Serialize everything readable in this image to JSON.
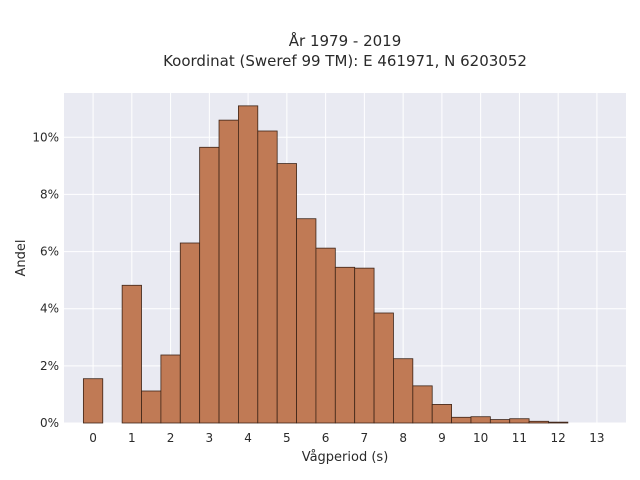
{
  "chart_data": {
    "type": "bar",
    "title": [
      "År 1979 - 2019",
      "Koordinat (Sweref 99 TM): E 461971, N 6203052"
    ],
    "xlabel": "Vågperiod (s)",
    "ylabel": "Andel",
    "bin_width": 0.5,
    "x": [
      0,
      0.5,
      1,
      1.5,
      2,
      2.5,
      3,
      3.5,
      4,
      4.5,
      5,
      5.5,
      6,
      6.5,
      7,
      7.5,
      8,
      8.5,
      9,
      9.5,
      10,
      10.5,
      11,
      11.5,
      12,
      12.5,
      13
    ],
    "values": [
      1.55,
      0,
      4.82,
      1.12,
      2.38,
      6.3,
      9.65,
      10.6,
      11.1,
      10.22,
      9.08,
      7.15,
      6.12,
      5.45,
      5.42,
      3.85,
      2.25,
      1.3,
      0.65,
      0.2,
      0.22,
      0.12,
      0.15,
      0.06,
      0.03,
      0,
      0
    ],
    "xticks": [
      0,
      1,
      2,
      3,
      4,
      5,
      6,
      7,
      8,
      9,
      10,
      11,
      12,
      13
    ],
    "yticks": [
      0,
      2,
      4,
      6,
      8,
      10
    ],
    "ytick_labels": [
      "0%",
      "2%",
      "4%",
      "6%",
      "8%",
      "10%"
    ],
    "xlim": [
      -0.75,
      13.75
    ],
    "ylim": [
      0,
      11.55
    ],
    "grid": true,
    "colors": {
      "bar": "#c07a55",
      "bar_edge": "#3d2417",
      "plot_bg": "#e9eaf2",
      "grid": "#ffffff"
    }
  }
}
